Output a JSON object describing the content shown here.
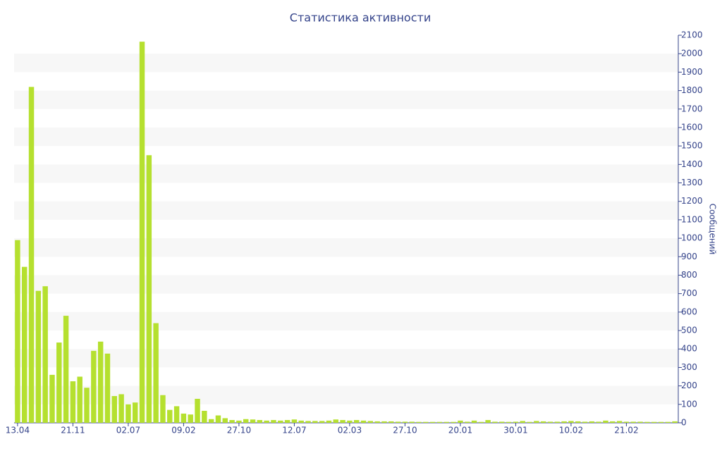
{
  "chart_data": {
    "type": "bar",
    "title": "Статистика активности",
    "y_label": "Сообщений",
    "color": "#b5e02f",
    "grid": "bands",
    "categories": [
      "13.04",
      null,
      null,
      null,
      null,
      null,
      null,
      null,
      "21.11",
      null,
      null,
      null,
      null,
      null,
      null,
      null,
      "02.07",
      null,
      null,
      null,
      null,
      null,
      null,
      null,
      "09.02",
      null,
      null,
      null,
      null,
      null,
      null,
      null,
      "27.10",
      null,
      null,
      null,
      null,
      null,
      null,
      null,
      "12.07",
      null,
      null,
      null,
      null,
      null,
      null,
      null,
      "02.03",
      null,
      null,
      null,
      null,
      null,
      null,
      null,
      "27.10",
      null,
      null,
      null,
      null,
      null,
      null,
      null,
      "20.01",
      null,
      null,
      null,
      null,
      null,
      null,
      null,
      "30.01",
      null,
      null,
      null,
      null,
      null,
      null,
      null,
      "10.02",
      null,
      null,
      null,
      null,
      null,
      null,
      null,
      "21.02",
      null,
      null,
      null,
      null,
      null,
      null,
      null
    ],
    "values": [
      990,
      845,
      1820,
      715,
      740,
      260,
      435,
      580,
      225,
      250,
      190,
      390,
      440,
      375,
      145,
      155,
      100,
      110,
      2065,
      1450,
      540,
      150,
      70,
      90,
      50,
      45,
      130,
      65,
      20,
      40,
      25,
      15,
      12,
      20,
      18,
      15,
      12,
      15,
      12,
      15,
      18,
      12,
      10,
      10,
      10,
      12,
      18,
      15,
      12,
      15,
      12,
      10,
      8,
      8,
      8,
      6,
      6,
      6,
      5,
      5,
      5,
      5,
      5,
      5,
      12,
      6,
      12,
      5,
      15,
      6,
      6,
      5,
      6,
      10,
      5,
      10,
      8,
      6,
      6,
      8,
      10,
      8,
      6,
      8,
      6,
      12,
      8,
      10,
      6,
      6,
      6,
      5,
      5,
      5,
      5,
      8
    ],
    "ylim": [
      0,
      2100
    ],
    "yticks": [
      0,
      100,
      200,
      300,
      400,
      500,
      600,
      700,
      800,
      900,
      1000,
      1100,
      1200,
      1300,
      1400,
      1500,
      1600,
      1700,
      1800,
      1900,
      2000,
      2100
    ]
  }
}
